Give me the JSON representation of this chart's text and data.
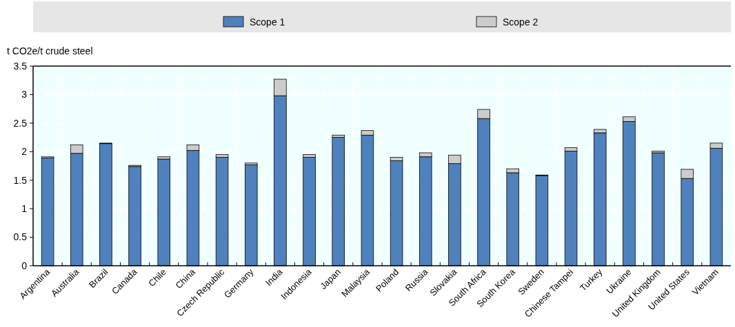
{
  "chart_data": {
    "type": "bar",
    "stacked": true,
    "ylabel": "t CO2e/t crude steel",
    "categories": [
      "Argentina",
      "Australia",
      "Brazil",
      "Canada",
      "Chile",
      "China",
      "Czech Republic",
      "Germany",
      "India",
      "Indonesia",
      "Japan",
      "Malaysia",
      "Poland",
      "Russia",
      "Slovakia",
      "South Africa",
      "South Korea",
      "Sweden",
      "Chinese Tampei",
      "Turkey",
      "Ukraine",
      "United Kingdom",
      "United States",
      "Vietnam"
    ],
    "series": [
      {
        "name": "Scope 1",
        "color": "#4f81bd",
        "values": [
          1.89,
          1.97,
          2.14,
          1.74,
          1.87,
          2.02,
          1.9,
          1.77,
          2.98,
          1.9,
          2.25,
          2.29,
          1.84,
          1.91,
          1.79,
          2.58,
          1.63,
          1.58,
          2.01,
          2.33,
          2.53,
          1.98,
          1.53,
          2.06
        ]
      },
      {
        "name": "Scope 2",
        "color": "#cccccc",
        "values": [
          0.02,
          0.15,
          0.01,
          0.02,
          0.04,
          0.1,
          0.05,
          0.03,
          0.29,
          0.05,
          0.04,
          0.08,
          0.06,
          0.07,
          0.15,
          0.16,
          0.07,
          0.01,
          0.06,
          0.06,
          0.08,
          0.03,
          0.16,
          0.09
        ]
      }
    ],
    "ylim": [
      0,
      3.5
    ],
    "yticks": [
      0,
      0.5,
      1,
      1.5,
      2,
      2.5,
      3,
      3.5
    ],
    "grid": true,
    "legend": "top"
  }
}
